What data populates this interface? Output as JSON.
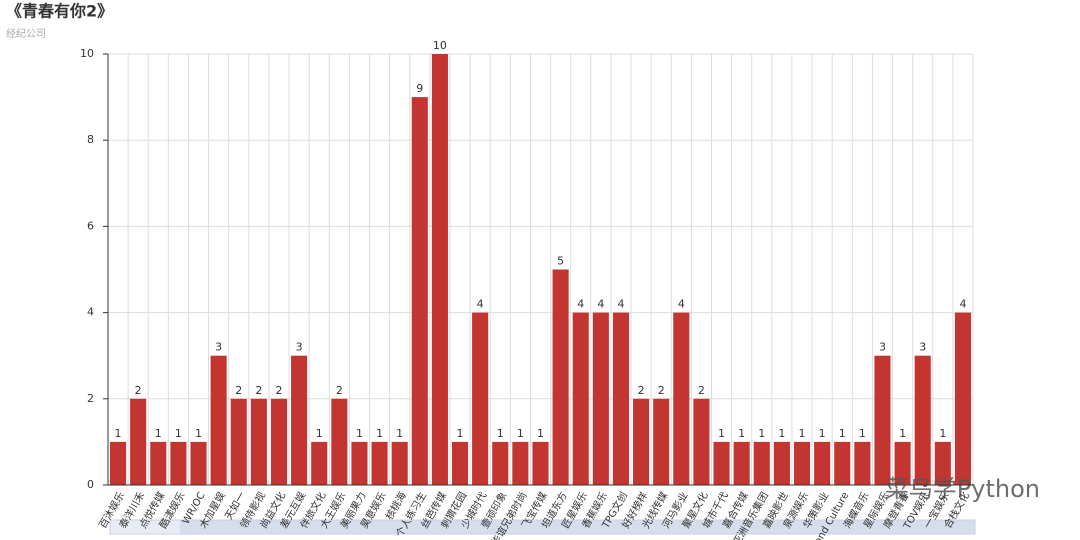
{
  "chart_data": {
    "type": "bar",
    "title": "《青春有你2》",
    "subtitle": "经纪公司",
    "categories": [
      "百沐娱乐",
      "泰洋川禾",
      "点悦传媒",
      "酷漾娱乐",
      "WR/OC",
      "木加星娱",
      "天如一",
      "领侍影视",
      "尚益文化",
      "差元互娱",
      "伴旅文化",
      "大王娱乐",
      "美丽果力",
      "昊意娱乐",
      "核桃海",
      "个人练习生",
      "丝芭传媒",
      "刺猬花园",
      "少城时代",
      "壹顽印象",
      "华谊兄弟时尚",
      "飞宝传媒",
      "坦道东方",
      "匠星娱乐",
      "香蕉娱乐",
      "TPG文创",
      "好好榜样",
      "光线传媒",
      "河马影业",
      "聚星文化",
      "城市千代",
      "嘉合传媒",
      "亚洲音乐集团",
      "嘉映影世",
      "泉源娱乐",
      "华策影业",
      "Second Culture",
      "海蝶音乐",
      "星际娱乐",
      "摩登青春",
      "TOV娱乐",
      "一宝娱乐",
      "合栈文化"
    ],
    "values": [
      1,
      2,
      1,
      1,
      1,
      3,
      2,
      2,
      2,
      3,
      1,
      2,
      1,
      1,
      1,
      9,
      10,
      1,
      4,
      1,
      1,
      1,
      5,
      4,
      4,
      4,
      2,
      2,
      4,
      2,
      1,
      1,
      1,
      1,
      1,
      1,
      1,
      1,
      3,
      1,
      3,
      1,
      4
    ],
    "color": "#c23531",
    "ylim": [
      0,
      10
    ],
    "yticks": [
      0,
      2,
      4,
      6,
      8,
      10
    ],
    "grid": true
  },
  "watermark": "菜鸟学Python"
}
